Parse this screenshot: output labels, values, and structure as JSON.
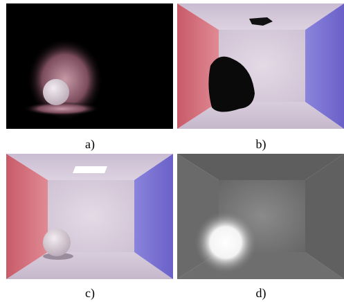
{
  "figure": {
    "captions": [
      "a)",
      "b)",
      "c)",
      "d)"
    ]
  }
}
